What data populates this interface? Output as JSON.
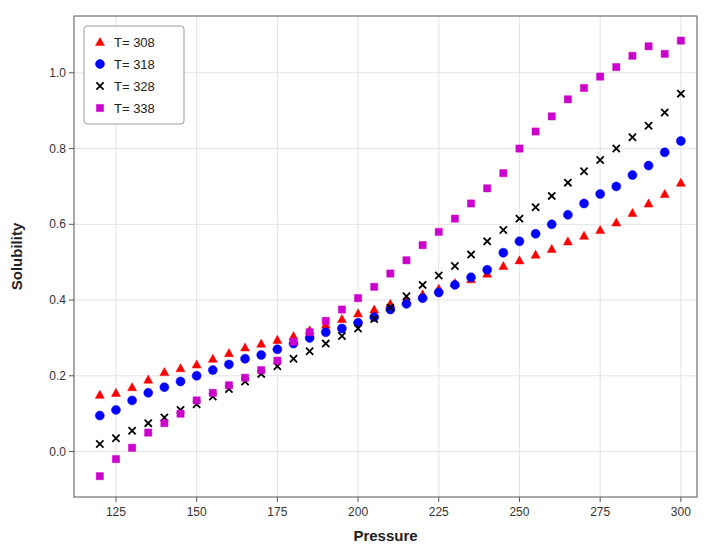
{
  "chart_data": {
    "type": "scatter",
    "xlabel": "Pressure",
    "ylabel": "Solubility",
    "xlim": [
      112,
      305
    ],
    "ylim": [
      -0.12,
      1.15
    ],
    "xticks": [
      125,
      150,
      175,
      200,
      225,
      250,
      275,
      300
    ],
    "yticks": [
      {
        "value": 0.0,
        "label": "0.0"
      },
      0.2,
      0.4,
      0.6,
      0.8,
      {
        "value": 1.0,
        "label": "1.0"
      }
    ],
    "grid": true,
    "legend": "upper left",
    "x": [
      120,
      125,
      130,
      135,
      140,
      145,
      150,
      155,
      160,
      165,
      170,
      175,
      180,
      185,
      190,
      195,
      200,
      205,
      210,
      215,
      220,
      225,
      230,
      235,
      240,
      245,
      250,
      255,
      260,
      265,
      270,
      275,
      280,
      285,
      290,
      295,
      300
    ],
    "series": [
      {
        "name": "T= 308",
        "color": "#ff0000",
        "marker": "triangle",
        "values": [
          0.15,
          0.155,
          0.17,
          0.19,
          0.21,
          0.22,
          0.23,
          0.245,
          0.26,
          0.275,
          0.285,
          0.295,
          0.305,
          0.32,
          0.335,
          0.35,
          0.365,
          0.375,
          0.39,
          0.4,
          0.415,
          0.43,
          0.445,
          0.455,
          0.47,
          0.49,
          0.505,
          0.52,
          0.535,
          0.555,
          0.57,
          0.585,
          0.605,
          0.63,
          0.655,
          0.68,
          0.71
        ]
      },
      {
        "name": "T= 318",
        "color": "#0000ff",
        "marker": "circle",
        "values": [
          0.095,
          0.11,
          0.135,
          0.155,
          0.17,
          0.185,
          0.2,
          0.215,
          0.23,
          0.245,
          0.255,
          0.27,
          0.285,
          0.3,
          0.315,
          0.325,
          0.34,
          0.355,
          0.375,
          0.39,
          0.405,
          0.42,
          0.44,
          0.46,
          0.48,
          0.525,
          0.555,
          0.575,
          0.6,
          0.625,
          0.655,
          0.68,
          0.7,
          0.73,
          0.755,
          0.79,
          0.82
        ]
      },
      {
        "name": "T= 328",
        "color": "#000000",
        "marker": "x",
        "values": [
          0.02,
          0.035,
          0.055,
          0.075,
          0.09,
          0.11,
          0.125,
          0.145,
          0.165,
          0.185,
          0.205,
          0.225,
          0.245,
          0.265,
          0.285,
          0.305,
          0.325,
          0.35,
          0.38,
          0.41,
          0.44,
          0.465,
          0.49,
          0.52,
          0.555,
          0.585,
          0.615,
          0.645,
          0.675,
          0.71,
          0.74,
          0.77,
          0.8,
          0.83,
          0.86,
          0.895,
          0.945
        ]
      },
      {
        "name": "T= 338",
        "color": "#cc00cc",
        "marker": "square",
        "values": [
          -0.065,
          -0.02,
          0.01,
          0.05,
          0.075,
          0.1,
          0.135,
          0.155,
          0.175,
          0.195,
          0.215,
          0.24,
          0.29,
          0.315,
          0.345,
          0.375,
          0.405,
          0.435,
          0.47,
          0.505,
          0.545,
          0.58,
          0.615,
          0.655,
          0.695,
          0.735,
          0.8,
          0.845,
          0.885,
          0.93,
          0.96,
          0.99,
          1.015,
          1.045,
          1.07,
          1.05,
          1.085
        ]
      }
    ]
  }
}
